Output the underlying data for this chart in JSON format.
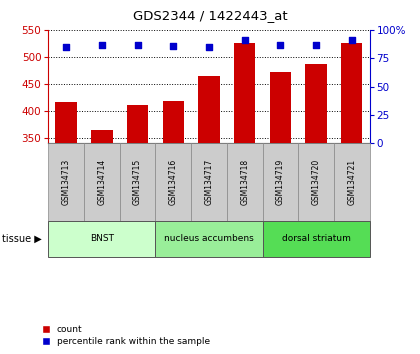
{
  "title": "GDS2344 / 1422443_at",
  "samples": [
    "GSM134713",
    "GSM134714",
    "GSM134715",
    "GSM134716",
    "GSM134717",
    "GSM134718",
    "GSM134719",
    "GSM134720",
    "GSM134721"
  ],
  "counts": [
    417,
    365,
    412,
    418,
    464,
    526,
    472,
    488,
    526
  ],
  "percentiles": [
    85,
    87,
    87,
    86,
    85,
    91,
    87,
    87,
    91
  ],
  "ylim_left": [
    340,
    550
  ],
  "ylim_right": [
    0,
    100
  ],
  "yticks_left": [
    350,
    400,
    450,
    500,
    550
  ],
  "yticks_right": [
    0,
    25,
    50,
    75,
    100
  ],
  "groups": [
    {
      "label": "BNST",
      "start": 0,
      "end": 3,
      "color": "#ccffcc"
    },
    {
      "label": "nucleus accumbens",
      "start": 3,
      "end": 6,
      "color": "#99ee99"
    },
    {
      "label": "dorsal striatum",
      "start": 6,
      "end": 9,
      "color": "#55dd55"
    }
  ],
  "bar_color": "#cc0000",
  "dot_color": "#0000cc",
  "label_color_left": "#cc0000",
  "label_color_right": "#0000cc",
  "tissue_label": "tissue",
  "legend_count": "count",
  "legend_percentile": "percentile rank within the sample",
  "bar_bottom": 340,
  "sample_box_color": "#cccccc",
  "sample_box_edge": "#888888",
  "right_tick_labels": [
    "0",
    "25",
    "50",
    "75",
    "100%"
  ]
}
